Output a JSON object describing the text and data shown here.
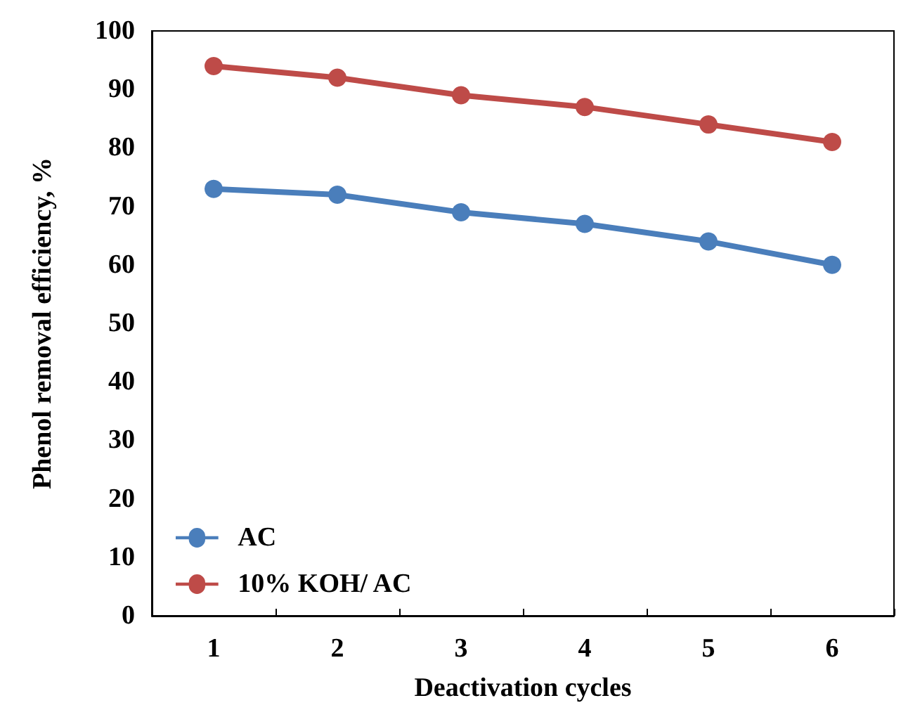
{
  "chart_data": {
    "type": "line",
    "xlabel": "Deactivation cycles",
    "ylabel": "Phenol removal efficiency, %",
    "categories": [
      "1",
      "2",
      "3",
      "4",
      "5",
      "6"
    ],
    "series": [
      {
        "name": "AC",
        "color": "#4a7ebb",
        "values": [
          73,
          72,
          69,
          67,
          64,
          60
        ]
      },
      {
        "name": "10% KOH/ AC",
        "color": "#be4b48",
        "values": [
          94,
          92,
          89,
          87,
          84,
          81
        ]
      }
    ],
    "ylim": [
      0,
      100
    ],
    "yticks": [
      0,
      10,
      20,
      30,
      40,
      50,
      60,
      70,
      80,
      90,
      100
    ],
    "grid": false,
    "legend": "bottom left",
    "marker": "circle",
    "line_style": "solid"
  }
}
